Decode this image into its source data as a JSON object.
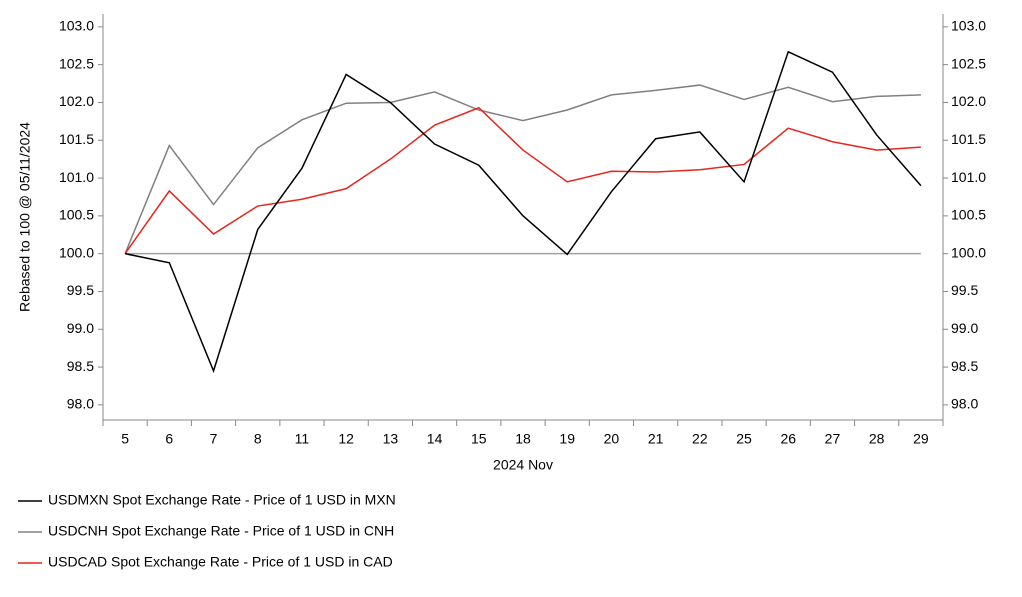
{
  "chart_data": {
    "type": "line",
    "y_axis_label": "Rebased to 100 @ 05/11/2024",
    "x_axis_label": "2024 Nov",
    "categories": [
      "5",
      "6",
      "7",
      "8",
      "11",
      "12",
      "13",
      "14",
      "15",
      "18",
      "19",
      "20",
      "21",
      "22",
      "25",
      "26",
      "27",
      "28",
      "29"
    ],
    "series": [
      {
        "name": "USDMXN Spot Exchange Rate - Price of 1 USD in MXN",
        "color": "#000000",
        "values": [
          100,
          99.88,
          98.45,
          100.32,
          101.13,
          102.37,
          102.0,
          101.45,
          101.17,
          100.5,
          99.99,
          100.82,
          101.52,
          101.61,
          100.95,
          102.67,
          102.4,
          101.57,
          100.9
        ]
      },
      {
        "name": "USDCNH Spot Exchange Rate - Price of 1 USD in CNH",
        "color": "#808080",
        "values": [
          100,
          101.43,
          100.65,
          101.4,
          101.77,
          101.99,
          102.0,
          102.14,
          101.9,
          101.76,
          101.9,
          102.1,
          102.16,
          102.23,
          102.04,
          102.2,
          102.01,
          102.08,
          102.1
        ]
      },
      {
        "name": "USDCAD Spot Exchange Rate - Price of 1 USD in CAD",
        "color": "#e8251c",
        "values": [
          100,
          100.83,
          100.26,
          100.63,
          100.72,
          100.86,
          101.25,
          101.7,
          101.93,
          101.37,
          100.95,
          101.09,
          101.08,
          101.11,
          101.18,
          101.66,
          101.48,
          101.37,
          101.41
        ]
      }
    ],
    "reference_line": 100,
    "reference_color": "#a0a0a0",
    "ylim": [
      97.8,
      103.17
    ],
    "yticks": [
      {
        "value": 98,
        "label": "98.0"
      },
      98.5,
      {
        "value": 99,
        "label": "99.0"
      },
      99.5,
      {
        "value": 100,
        "label": "100.0"
      },
      100.5,
      {
        "value": 101,
        "label": "101.0"
      },
      101.5,
      {
        "value": 102,
        "label": "102.0"
      },
      102.5,
      {
        "value": 103,
        "label": "103.0"
      }
    ],
    "legend": "bottom"
  }
}
